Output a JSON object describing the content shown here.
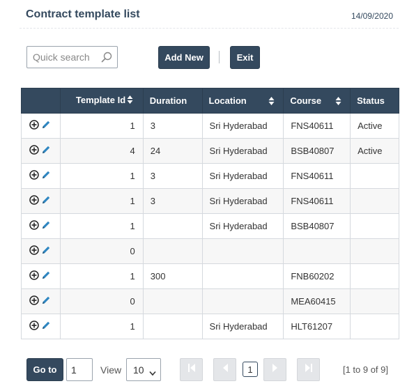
{
  "header": {
    "title": "Contract template list",
    "date": "14/09/2020"
  },
  "toolbar": {
    "search_placeholder": "Quick search",
    "add_new_label": "Add New",
    "exit_label": "Exit"
  },
  "table": {
    "columns": [
      "",
      "Template Id",
      "Duration",
      "Location",
      "Course",
      "Status"
    ],
    "rows": [
      {
        "template_id": "1",
        "duration": "3",
        "location": "Sri Hyderabad",
        "course": "FNS40611",
        "status": "Active"
      },
      {
        "template_id": "4",
        "duration": "24",
        "location": "Sri Hyderabad",
        "course": "BSB40807",
        "status": "Active"
      },
      {
        "template_id": "1",
        "duration": "3",
        "location": "Sri Hyderabad",
        "course": "FNS40611",
        "status": ""
      },
      {
        "template_id": "1",
        "duration": "3",
        "location": "Sri Hyderabad",
        "course": "FNS40611",
        "status": ""
      },
      {
        "template_id": "1",
        "duration": "",
        "location": "Sri Hyderabad",
        "course": "BSB40807",
        "status": ""
      },
      {
        "template_id": "0",
        "duration": "",
        "location": "",
        "course": "",
        "status": ""
      },
      {
        "template_id": "1",
        "duration": "300",
        "location": "",
        "course": "FNB60202",
        "status": ""
      },
      {
        "template_id": "0",
        "duration": "",
        "location": "",
        "course": "MEA60415",
        "status": ""
      },
      {
        "template_id": "1",
        "duration": "",
        "location": "Sri Hyderabad",
        "course": "HLT61207",
        "status": ""
      }
    ]
  },
  "pager": {
    "goto_label": "Go to",
    "goto_value": "1",
    "view_label": "View",
    "view_value": "10",
    "current_page": "1",
    "range_text": "[1 to 9 of 9]"
  },
  "colors": {
    "accent": "#34495e",
    "disabled": "#e4e6e9",
    "icon": "#2e86c1"
  },
  "icons": [
    "search-icon",
    "add-icon",
    "edit-icon",
    "first-page-icon",
    "prev-page-icon",
    "next-page-icon",
    "last-page-icon",
    "chevron-down-icon"
  ]
}
